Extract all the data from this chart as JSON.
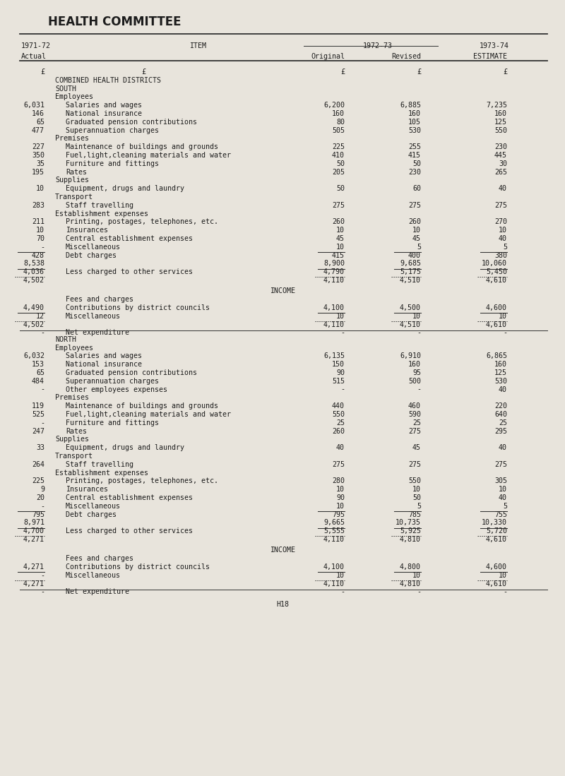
{
  "title": "HEALTH COMMITTEE",
  "bg_color": "#e8e4dc",
  "footer": "H18",
  "south_rows": [
    {
      "actual": "6,031",
      "item": "Salaries and wages",
      "orig": "6,200",
      "rev": "6,885",
      "est": "7,235",
      "type": "data"
    },
    {
      "actual": "146",
      "item": "National insurance",
      "orig": "160",
      "rev": "160",
      "est": "160",
      "type": "data"
    },
    {
      "actual": "65",
      "item": "Graduated pension contributions",
      "orig": "80",
      "rev": "105",
      "est": "125",
      "type": "data"
    },
    {
      "actual": "477",
      "item": "Superannuation charges",
      "orig": "505",
      "rev": "530",
      "est": "550",
      "type": "data"
    },
    {
      "actual": "",
      "item": "Premises",
      "orig": "",
      "rev": "",
      "est": "",
      "type": "subhead"
    },
    {
      "actual": "227",
      "item": "Maintenance of buildings and grounds",
      "orig": "225",
      "rev": "255",
      "est": "230",
      "type": "data"
    },
    {
      "actual": "350",
      "item": "Fuel,light,cleaning materials and water",
      "orig": "410",
      "rev": "415",
      "est": "445",
      "type": "data"
    },
    {
      "actual": "35",
      "item": "Furniture and fittings",
      "orig": "50",
      "rev": "50",
      "est": "30",
      "type": "data"
    },
    {
      "actual": "195",
      "item": "Rates",
      "orig": "205",
      "rev": "230",
      "est": "265",
      "type": "data"
    },
    {
      "actual": "",
      "item": "Supplies",
      "orig": "",
      "rev": "",
      "est": "",
      "type": "subhead"
    },
    {
      "actual": "10",
      "item": "Equipment, drugs and laundry",
      "orig": "50",
      "rev": "60",
      "est": "40",
      "type": "data"
    },
    {
      "actual": "",
      "item": "Transport",
      "orig": "",
      "rev": "",
      "est": "",
      "type": "subhead"
    },
    {
      "actual": "283",
      "item": "Staff travelling",
      "orig": "275",
      "rev": "275",
      "est": "275",
      "type": "data"
    },
    {
      "actual": "",
      "item": "Establishment expenses",
      "orig": "",
      "rev": "",
      "est": "",
      "type": "subhead"
    },
    {
      "actual": "211",
      "item": "Printing, postages, telephones, etc.",
      "orig": "260",
      "rev": "260",
      "est": "270",
      "type": "data"
    },
    {
      "actual": "10",
      "item": "Insurances",
      "orig": "10",
      "rev": "10",
      "est": "10",
      "type": "data"
    },
    {
      "actual": "70",
      "item": "Central establishment expenses",
      "orig": "45",
      "rev": "45",
      "est": "40",
      "type": "data"
    },
    {
      "actual": "-",
      "item": "Miscellaneous",
      "orig": "10",
      "rev": "5",
      "est": "5",
      "type": "data"
    },
    {
      "actual": "428",
      "item": "Debt charges",
      "orig": "415",
      "rev": "400",
      "est": "380",
      "type": "data",
      "ul_all": true
    }
  ],
  "south_totals": [
    {
      "actual": "8,538",
      "item": "",
      "orig": "8,900",
      "rev": "9,685",
      "est": "10,060",
      "type": "total"
    },
    {
      "actual": "4,036",
      "item": "Less charged to other services",
      "orig": "4,790",
      "rev": "5,175",
      "est": "5,450",
      "type": "total",
      "ul_all": true
    },
    {
      "actual": "4,502",
      "item": "",
      "orig": "4,110",
      "rev": "4,510",
      "est": "4,610",
      "type": "dotted"
    }
  ],
  "south_income": [
    {
      "actual": "",
      "item": "Fees and charges",
      "orig": "",
      "rev": "",
      "est": "",
      "type": "subhead"
    },
    {
      "actual": "4,490",
      "item": "Contributions by district councils",
      "orig": "4,100",
      "rev": "4,500",
      "est": "4,600",
      "type": "data"
    },
    {
      "actual": "12",
      "item": "Miscellaneous",
      "orig": "10",
      "rev": "10",
      "est": "10",
      "type": "data",
      "ul_all": true
    },
    {
      "actual": "4,502",
      "item": "",
      "orig": "4,110",
      "rev": "4,510",
      "est": "4,610",
      "type": "dotted"
    },
    {
      "actual": "-",
      "item": "Net expenditure",
      "orig": "-",
      "rev": "-",
      "est": "-",
      "type": "net"
    }
  ],
  "north_rows": [
    {
      "actual": "6,032",
      "item": "Salaries and wages",
      "orig": "6,135",
      "rev": "6,910",
      "est": "6,865",
      "type": "data"
    },
    {
      "actual": "153",
      "item": "National insurance",
      "orig": "150",
      "rev": "160",
      "est": "160",
      "type": "data"
    },
    {
      "actual": "65",
      "item": "Graduated pension contributions",
      "orig": "90",
      "rev": "95",
      "est": "125",
      "type": "data"
    },
    {
      "actual": "484",
      "item": "Superannuation charges",
      "orig": "515",
      "rev": "500",
      "est": "530",
      "type": "data"
    },
    {
      "actual": "-",
      "item": "Other employees expenses",
      "orig": "-",
      "rev": "-",
      "est": "40",
      "type": "data"
    },
    {
      "actual": "",
      "item": "Premises",
      "orig": "",
      "rev": "",
      "est": "",
      "type": "subhead"
    },
    {
      "actual": "119",
      "item": "Maintenance of buildings and grounds",
      "orig": "440",
      "rev": "460",
      "est": "220",
      "type": "data"
    },
    {
      "actual": "525",
      "item": "Fuel,light,cleaning materials and water",
      "orig": "550",
      "rev": "590",
      "est": "640",
      "type": "data"
    },
    {
      "actual": "-",
      "item": "Furniture and fittings",
      "orig": "25",
      "rev": "25",
      "est": "25",
      "type": "data"
    },
    {
      "actual": "247",
      "item": "Rates",
      "orig": "260",
      "rev": "275",
      "est": "295",
      "type": "data"
    },
    {
      "actual": "",
      "item": "Supplies",
      "orig": "",
      "rev": "",
      "est": "",
      "type": "subhead"
    },
    {
      "actual": "33",
      "item": "Equipment, drugs and laundry",
      "orig": "40",
      "rev": "45",
      "est": "40",
      "type": "data"
    },
    {
      "actual": "",
      "item": "Transport",
      "orig": "",
      "rev": "",
      "est": "",
      "type": "subhead"
    },
    {
      "actual": "264",
      "item": "Staff travelling",
      "orig": "275",
      "rev": "275",
      "est": "275",
      "type": "data"
    },
    {
      "actual": "",
      "item": "Establishment expenses",
      "orig": "",
      "rev": "",
      "est": "",
      "type": "subhead"
    },
    {
      "actual": "225",
      "item": "Printing, postages, telephones, etc.",
      "orig": "280",
      "rev": "550",
      "est": "305",
      "type": "data"
    },
    {
      "actual": "9",
      "item": "Insurances",
      "orig": "10",
      "rev": "10",
      "est": "10",
      "type": "data"
    },
    {
      "actual": "20",
      "item": "Central establishment expenses",
      "orig": "90",
      "rev": "50",
      "est": "40",
      "type": "data"
    },
    {
      "actual": "-",
      "item": "Miscellaneous",
      "orig": "10",
      "rev": "5",
      "est": "5",
      "type": "data"
    },
    {
      "actual": "795",
      "item": "Debt charges",
      "orig": "795",
      "rev": "785",
      "est": "755",
      "type": "data",
      "ul_all": true
    }
  ],
  "north_totals": [
    {
      "actual": "8,971",
      "item": "",
      "orig": "9,665",
      "rev": "10,735",
      "est": "10,330",
      "type": "total"
    },
    {
      "actual": "4,700",
      "item": "Less charged to other services",
      "orig": "5,555",
      "rev": "5,925",
      "est": "5,720",
      "type": "total",
      "ul_all": true
    },
    {
      "actual": "4,271",
      "item": "",
      "orig": "4,110",
      "rev": "4,810",
      "est": "4,610",
      "type": "dotted"
    }
  ],
  "north_income": [
    {
      "actual": "",
      "item": "Fees and charges",
      "orig": "",
      "rev": "",
      "est": "",
      "type": "subhead"
    },
    {
      "actual": "4,271",
      "item": "Contributions by district councils",
      "orig": "4,100",
      "rev": "4,800",
      "est": "4,600",
      "type": "data"
    },
    {
      "actual": "-",
      "item": "Miscellaneous",
      "orig": "10",
      "rev": "10",
      "est": "10",
      "type": "data",
      "ul_all": true
    },
    {
      "actual": "4,271",
      "item": "",
      "orig": "4,110",
      "rev": "4,810",
      "est": "4,610",
      "type": "dotted"
    },
    {
      "actual": "-",
      "item": "Net expenditure",
      "orig": "-",
      "rev": "-",
      "est": "-",
      "type": "net"
    }
  ]
}
